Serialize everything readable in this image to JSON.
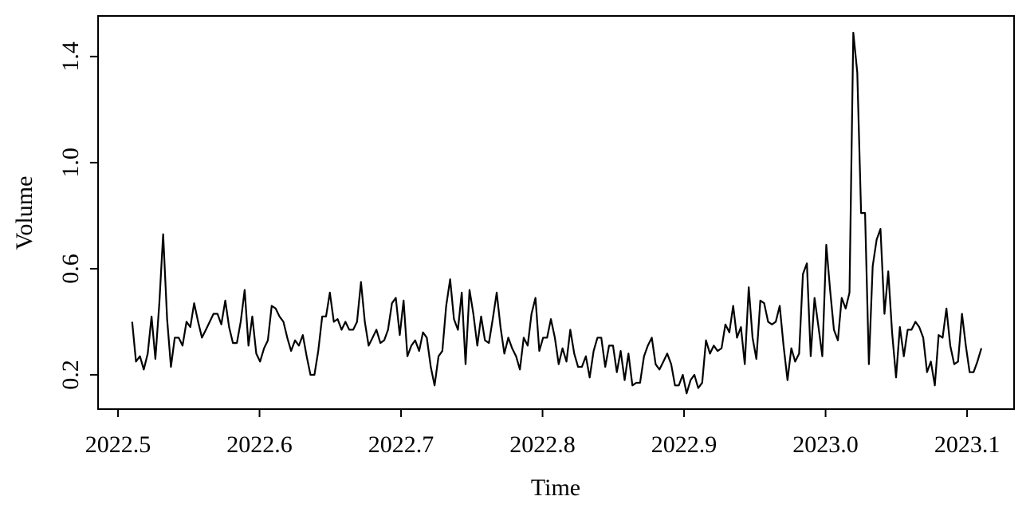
{
  "chart_data": {
    "type": "line",
    "x_label": "Time",
    "y_label": "Volume",
    "color": "#000000",
    "grid": false,
    "xlim": [
      2022.4859,
      2023.1332
    ],
    "ylim": [
      0.0707,
      1.553
    ],
    "xticks": [
      2022.5,
      2022.6,
      2022.7,
      2022.8,
      2022.9,
      {
        "value": 2023,
        "label": "2023.0"
      },
      2023.1
    ],
    "yticks": [
      0.2,
      0.6,
      {
        "value": 1,
        "label": "1.0"
      },
      1.4
    ],
    "x": [
      2022.51,
      2022.5127,
      2022.5155,
      2022.5182,
      2022.521,
      2022.5237,
      2022.5264,
      2022.5292,
      2022.5319,
      2022.5347,
      2022.5374,
      2022.5401,
      2022.5429,
      2022.5456,
      2022.5484,
      2022.5511,
      2022.5538,
      2022.5566,
      2022.5593,
      2022.5621,
      2022.5648,
      2022.5675,
      2022.5703,
      2022.573,
      2022.5758,
      2022.5785,
      2022.5812,
      2022.584,
      2022.5867,
      2022.5895,
      2022.5922,
      2022.5949,
      2022.5977,
      2022.6004,
      2022.6032,
      2022.6059,
      2022.6086,
      2022.6114,
      2022.6141,
      2022.6169,
      2022.6196,
      2022.6223,
      2022.6251,
      2022.6278,
      2022.6306,
      2022.6333,
      2022.636,
      2022.6388,
      2022.6415,
      2022.6443,
      2022.647,
      2022.6497,
      2022.6525,
      2022.6552,
      2022.658,
      2022.6607,
      2022.6634,
      2022.6662,
      2022.6689,
      2022.6717,
      2022.6744,
      2022.6771,
      2022.6799,
      2022.6826,
      2022.6854,
      2022.6881,
      2022.6908,
      2022.6936,
      2022.6963,
      2022.6991,
      2022.7018,
      2022.7045,
      2022.7073,
      2022.71,
      2022.7128,
      2022.7155,
      2022.7182,
      2022.721,
      2022.7237,
      2022.7265,
      2022.7292,
      2022.7319,
      2022.7347,
      2022.7374,
      2022.7402,
      2022.7429,
      2022.7456,
      2022.7484,
      2022.7511,
      2022.7539,
      2022.7566,
      2022.7593,
      2022.7621,
      2022.7648,
      2022.7676,
      2022.7703,
      2022.773,
      2022.7758,
      2022.7785,
      2022.7813,
      2022.784,
      2022.7867,
      2022.7895,
      2022.7922,
      2022.795,
      2022.7977,
      2022.8004,
      2022.8032,
      2022.8059,
      2022.8087,
      2022.8114,
      2022.8141,
      2022.8169,
      2022.8196,
      2022.8224,
      2022.8251,
      2022.8278,
      2022.8306,
      2022.8333,
      2022.8361,
      2022.8388,
      2022.8415,
      2022.8443,
      2022.847,
      2022.8498,
      2022.8525,
      2022.8552,
      2022.858,
      2022.8607,
      2022.8635,
      2022.8662,
      2022.8689,
      2022.8717,
      2022.8744,
      2022.8772,
      2022.8799,
      2022.8826,
      2022.8854,
      2022.8881,
      2022.8909,
      2022.8936,
      2022.8963,
      2022.8991,
      2022.9018,
      2022.9046,
      2022.9073,
      2022.91,
      2022.9128,
      2022.9155,
      2022.9183,
      2022.921,
      2022.9237,
      2022.9265,
      2022.9292,
      2022.932,
      2022.9347,
      2022.9374,
      2022.9402,
      2022.9429,
      2022.9457,
      2022.9484,
      2022.9511,
      2022.9539,
      2022.9566,
      2022.9594,
      2022.9621,
      2022.9648,
      2022.9676,
      2022.9703,
      2022.9731,
      2022.9758,
      2022.9785,
      2022.9813,
      2022.984,
      2022.9868,
      2022.9895,
      2022.9922,
      2022.995,
      2022.9977,
      2023.0005,
      2023.0032,
      2023.0059,
      2023.0087,
      2023.0114,
      2023.0142,
      2023.0169,
      2023.0196,
      2023.0224,
      2023.0251,
      2023.0279,
      2023.0306,
      2023.0333,
      2023.0361,
      2023.0388,
      2023.0416,
      2023.0443,
      2023.047,
      2023.0498,
      2023.0525,
      2023.0553,
      2023.058,
      2023.0607,
      2023.0635,
      2023.0662,
      2023.069,
      2023.0717,
      2023.0744,
      2023.0772,
      2023.0799,
      2023.0827,
      2023.0854,
      2023.0881,
      2023.0909,
      2023.0936,
      2023.0964,
      2023.0991,
      2023.1018,
      2023.1046,
      2023.1073,
      2023.1101
    ],
    "values": [
      0.4,
      0.25,
      0.27,
      0.22,
      0.28,
      0.42,
      0.26,
      0.47,
      0.73,
      0.41,
      0.23,
      0.34,
      0.34,
      0.31,
      0.4,
      0.38,
      0.47,
      0.4,
      0.34,
      0.37,
      0.4,
      0.43,
      0.43,
      0.39,
      0.48,
      0.38,
      0.32,
      0.32,
      0.4,
      0.52,
      0.31,
      0.42,
      0.28,
      0.25,
      0.3,
      0.33,
      0.46,
      0.45,
      0.42,
      0.4,
      0.34,
      0.29,
      0.33,
      0.31,
      0.35,
      0.27,
      0.2,
      0.2,
      0.29,
      0.42,
      0.42,
      0.51,
      0.4,
      0.41,
      0.37,
      0.4,
      0.37,
      0.37,
      0.4,
      0.55,
      0.4,
      0.31,
      0.34,
      0.37,
      0.32,
      0.33,
      0.37,
      0.47,
      0.49,
      0.35,
      0.48,
      0.27,
      0.31,
      0.33,
      0.29,
      0.36,
      0.34,
      0.23,
      0.16,
      0.27,
      0.29,
      0.46,
      0.56,
      0.41,
      0.37,
      0.51,
      0.24,
      0.52,
      0.43,
      0.31,
      0.42,
      0.33,
      0.32,
      0.41,
      0.51,
      0.38,
      0.28,
      0.34,
      0.3,
      0.27,
      0.22,
      0.34,
      0.31,
      0.43,
      0.49,
      0.29,
      0.34,
      0.34,
      0.41,
      0.34,
      0.24,
      0.3,
      0.25,
      0.37,
      0.28,
      0.23,
      0.23,
      0.27,
      0.19,
      0.29,
      0.34,
      0.34,
      0.23,
      0.31,
      0.31,
      0.21,
      0.29,
      0.18,
      0.28,
      0.16,
      0.17,
      0.17,
      0.27,
      0.31,
      0.34,
      0.24,
      0.22,
      0.25,
      0.28,
      0.24,
      0.16,
      0.16,
      0.2,
      0.13,
      0.18,
      0.2,
      0.15,
      0.17,
      0.33,
      0.28,
      0.31,
      0.29,
      0.3,
      0.39,
      0.36,
      0.46,
      0.34,
      0.38,
      0.24,
      0.53,
      0.34,
      0.26,
      0.48,
      0.47,
      0.4,
      0.39,
      0.4,
      0.46,
      0.31,
      0.18,
      0.3,
      0.25,
      0.28,
      0.58,
      0.62,
      0.27,
      0.49,
      0.38,
      0.27,
      0.69,
      0.52,
      0.37,
      0.33,
      0.49,
      0.45,
      0.51,
      1.49,
      1.34,
      0.81,
      0.81,
      0.24,
      0.61,
      0.71,
      0.75,
      0.43,
      0.59,
      0.36,
      0.19,
      0.38,
      0.27,
      0.37,
      0.37,
      0.4,
      0.38,
      0.34,
      0.21,
      0.25,
      0.16,
      0.35,
      0.34,
      0.45,
      0.31,
      0.24,
      0.25,
      0.43,
      0.31,
      0.21,
      0.21,
      0.25,
      0.3
    ]
  }
}
